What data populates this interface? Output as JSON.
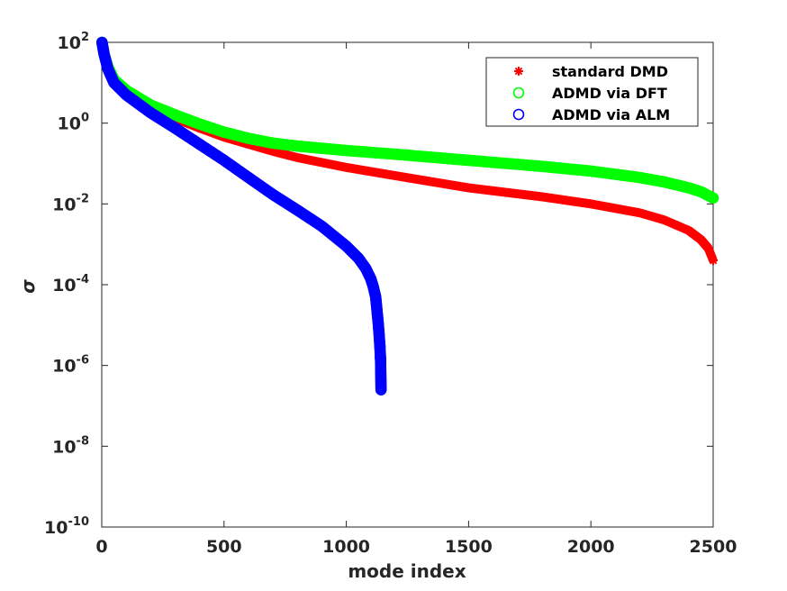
{
  "chart_data": {
    "type": "scatter",
    "xlabel": "mode index",
    "ylabel": "σ",
    "xlim": [
      0,
      2500
    ],
    "ylim_log10": [
      -10,
      2
    ],
    "yscale": "log",
    "grid": false,
    "legend_position": "top-right",
    "x_ticks": [
      "0",
      "500",
      "1000",
      "1500",
      "2000",
      "2500"
    ],
    "y_ticks": [
      {
        "base": "10",
        "exp": "2"
      },
      {
        "base": "10",
        "exp": "0"
      },
      {
        "base": "10",
        "exp": "-2"
      },
      {
        "base": "10",
        "exp": "-4"
      },
      {
        "base": "10",
        "exp": "-6"
      },
      {
        "base": "10",
        "exp": "-8"
      },
      {
        "base": "10",
        "exp": "-10"
      }
    ],
    "series": [
      {
        "name": "standard DMD",
        "marker": "asterisk",
        "color": "#ff0000",
        "x": [
          1,
          10,
          25,
          50,
          100,
          200,
          300,
          400,
          500,
          600,
          700,
          800,
          1000,
          1200,
          1500,
          1800,
          2000,
          2200,
          2300,
          2400,
          2450,
          2480,
          2500
        ],
        "y": [
          100,
          50,
          25,
          12,
          6,
          2.5,
          1.3,
          0.75,
          0.45,
          0.3,
          0.2,
          0.14,
          0.08,
          0.05,
          0.025,
          0.015,
          0.01,
          0.006,
          0.004,
          0.0022,
          0.0013,
          0.0008,
          0.0004
        ]
      },
      {
        "name": "ADMD via DFT",
        "marker": "circle",
        "color": "#00ff00",
        "x": [
          1,
          10,
          25,
          50,
          100,
          200,
          300,
          400,
          500,
          600,
          700,
          800,
          1000,
          1200,
          1500,
          1800,
          2000,
          2200,
          2300,
          2400,
          2450,
          2500
        ],
        "y": [
          100,
          50,
          25,
          12,
          6.5,
          2.8,
          1.6,
          0.95,
          0.6,
          0.42,
          0.32,
          0.27,
          0.21,
          0.17,
          0.12,
          0.085,
          0.065,
          0.045,
          0.035,
          0.025,
          0.02,
          0.014
        ]
      },
      {
        "name": "ADMD via ALM",
        "marker": "circle",
        "color": "#0000ff",
        "x": [
          1,
          10,
          25,
          50,
          100,
          200,
          300,
          400,
          500,
          600,
          700,
          800,
          900,
          1000,
          1050,
          1080,
          1100,
          1110,
          1120,
          1130,
          1135,
          1140,
          1142
        ],
        "y": [
          100,
          50,
          22,
          10,
          5,
          1.8,
          0.75,
          0.3,
          0.12,
          0.045,
          0.017,
          0.007,
          0.0028,
          0.0009,
          0.00045,
          0.00025,
          0.00014,
          9e-05,
          5e-05,
          1.2e-05,
          5e-06,
          1.5e-06,
          2.5e-07
        ]
      }
    ]
  }
}
